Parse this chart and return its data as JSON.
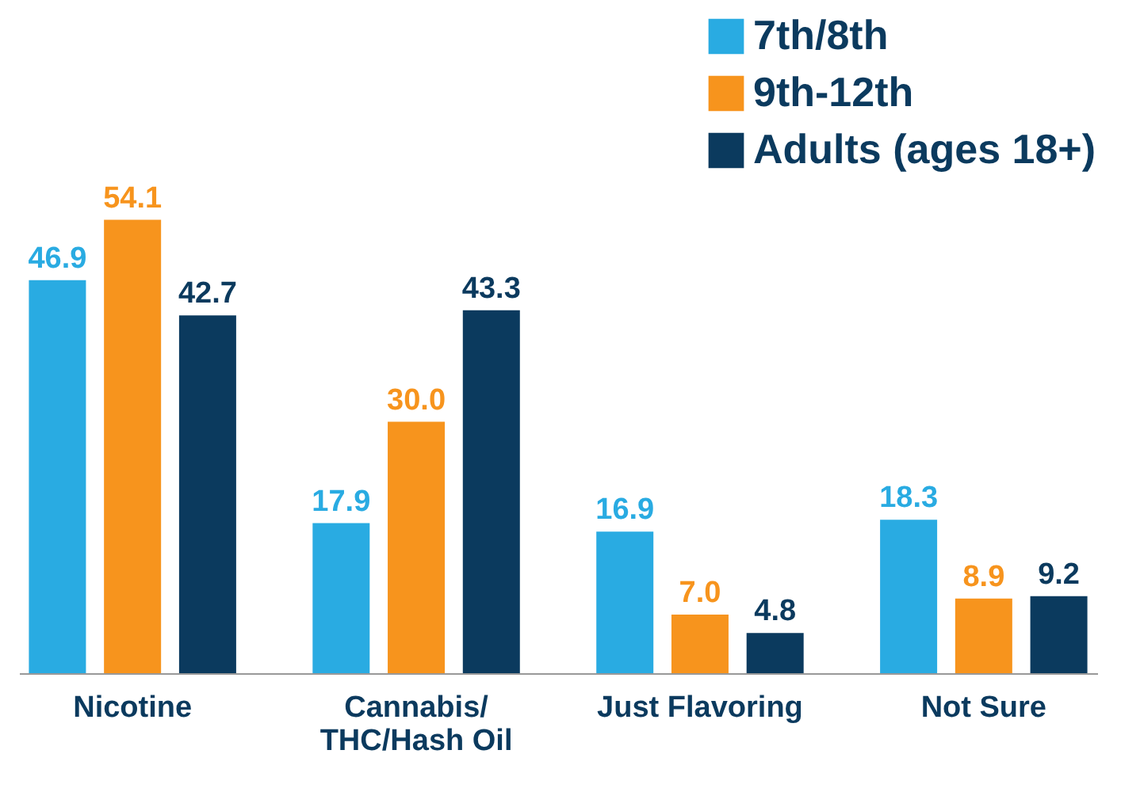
{
  "chart_data": {
    "type": "bar",
    "categories": [
      "Nicotine",
      "Cannabis/\nTHC/Hash Oil",
      "Just Flavoring",
      "Not Sure"
    ],
    "series": [
      {
        "name": "7th/8th",
        "color": "#29abe2",
        "values": [
          46.9,
          17.9,
          16.9,
          18.3
        ],
        "value_labels": [
          "46.9",
          "17.9",
          "16.9",
          "18.3"
        ]
      },
      {
        "name": "9th-12th",
        "color": "#f7941d",
        "values": [
          54.1,
          30.0,
          7.0,
          8.9
        ],
        "value_labels": [
          "54.1",
          "30.0",
          "7.0",
          "8.9"
        ]
      },
      {
        "name": "Adults (ages 18+)",
        "color": "#0b3a5e",
        "values": [
          42.7,
          43.3,
          4.8,
          9.2
        ],
        "value_labels": [
          "42.7",
          "43.3",
          "4.8",
          "9.2"
        ]
      }
    ],
    "legend": "top right",
    "grid": false
  }
}
